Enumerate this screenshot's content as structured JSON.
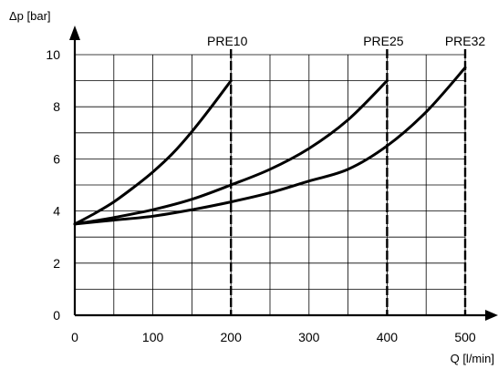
{
  "chart_data": {
    "type": "line",
    "xlabel": "Q [l/min]",
    "ylabel": "Δp [bar]",
    "xlim": [
      0,
      500
    ],
    "ylim": [
      0,
      10
    ],
    "x_ticks": [
      "0",
      "100",
      "200",
      "300",
      "400",
      "500"
    ],
    "y_ticks": [
      "0",
      "2",
      "4",
      "6",
      "8",
      "10"
    ],
    "grid": true,
    "series": [
      {
        "name": "PRE10",
        "x": [
          0,
          25,
          50,
          75,
          100,
          125,
          150,
          175,
          200
        ],
        "y": [
          3.5,
          3.9,
          4.35,
          4.9,
          5.5,
          6.2,
          7.05,
          8.0,
          9.0
        ]
      },
      {
        "name": "PRE25",
        "x": [
          0,
          50,
          100,
          150,
          200,
          250,
          300,
          350,
          400
        ],
        "y": [
          3.5,
          3.75,
          4.05,
          4.45,
          5.0,
          5.6,
          6.4,
          7.5,
          9.0
        ]
      },
      {
        "name": "PRE32",
        "x": [
          0,
          50,
          100,
          150,
          200,
          250,
          300,
          350,
          400,
          450,
          500
        ],
        "y": [
          3.5,
          3.65,
          3.8,
          4.05,
          4.35,
          4.7,
          5.15,
          5.6,
          6.5,
          7.8,
          9.5
        ]
      }
    ],
    "markers_x": [
      200,
      400,
      500
    ]
  }
}
